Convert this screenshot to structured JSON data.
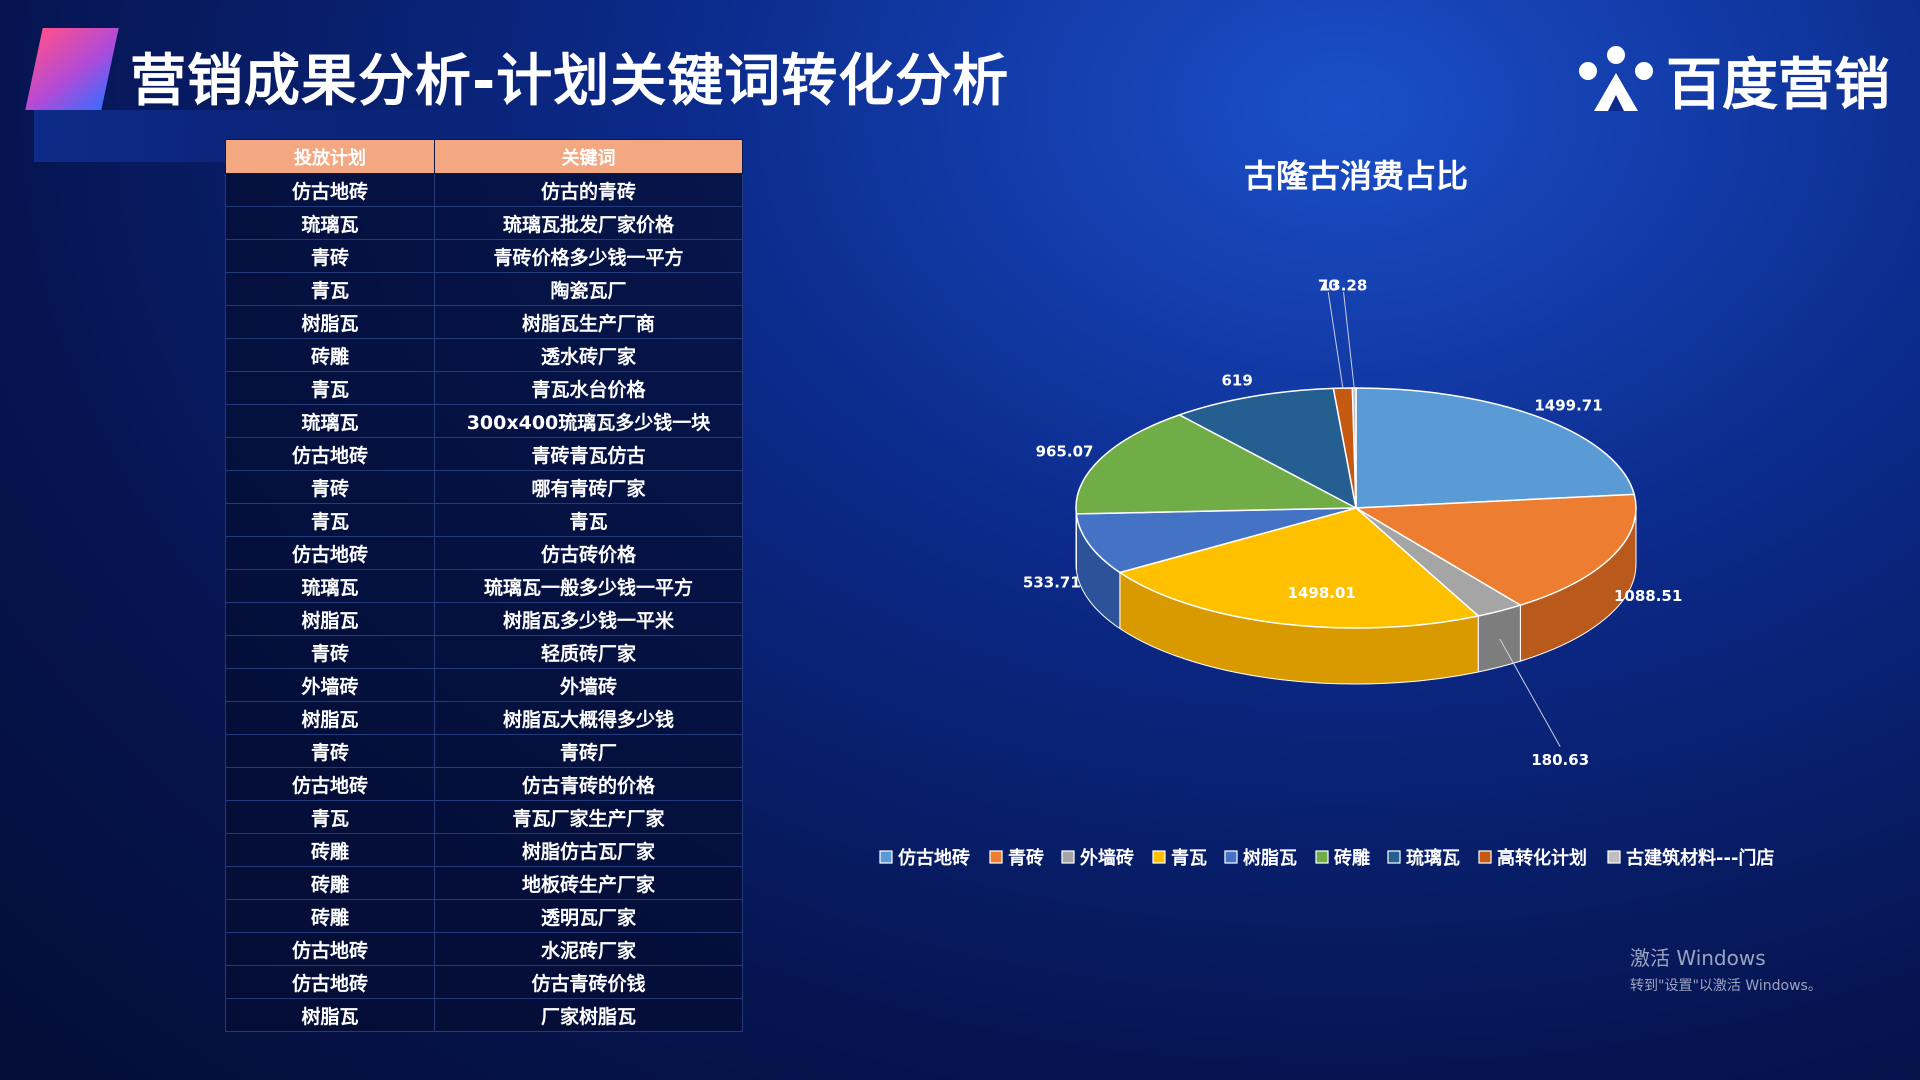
{
  "header": {
    "title": "营销成果分析-计划关键词转化分析",
    "brand": "百度营销"
  },
  "table": {
    "headers": [
      "投放计划",
      "关键词"
    ],
    "rows": [
      [
        "仿古地砖",
        "仿古的青砖"
      ],
      [
        "琉璃瓦",
        "琉璃瓦批发厂家价格"
      ],
      [
        "青砖",
        "青砖价格多少钱一平方"
      ],
      [
        "青瓦",
        "陶瓷瓦厂"
      ],
      [
        "树脂瓦",
        "树脂瓦生产厂商"
      ],
      [
        "砖雕",
        "透水砖厂家"
      ],
      [
        "青瓦",
        "青瓦水台价格"
      ],
      [
        "琉璃瓦",
        "300x400琉璃瓦多少钱一块"
      ],
      [
        "仿古地砖",
        "青砖青瓦仿古"
      ],
      [
        "青砖",
        "哪有青砖厂家"
      ],
      [
        "青瓦",
        "青瓦"
      ],
      [
        "仿古地砖",
        "仿古砖价格"
      ],
      [
        "琉璃瓦",
        "琉璃瓦一般多少钱一平方"
      ],
      [
        "树脂瓦",
        "树脂瓦多少钱一平米"
      ],
      [
        "青砖",
        "轻质砖厂家"
      ],
      [
        "外墙砖",
        "外墙砖"
      ],
      [
        "树脂瓦",
        "树脂瓦大概得多少钱"
      ],
      [
        "青砖",
        "青砖厂"
      ],
      [
        "仿古地砖",
        "仿古青砖的价格"
      ],
      [
        "青瓦",
        "青瓦厂家生产厂家"
      ],
      [
        "砖雕",
        "树脂仿古瓦厂家"
      ],
      [
        "砖雕",
        "地板砖生产厂家"
      ],
      [
        "砖雕",
        "透明瓦厂家"
      ],
      [
        "仿古地砖",
        "水泥砖厂家"
      ],
      [
        "仿古地砖",
        "仿古青砖价钱"
      ],
      [
        "树脂瓦",
        "厂家树脂瓦"
      ]
    ]
  },
  "chart_data": {
    "type": "pie",
    "title": "古隆古消费占比",
    "slices": [
      {
        "label": "仿古地砖",
        "value": 1499.71,
        "display": "1499.71",
        "color": "#5b9bd5",
        "side": "#3f78b0"
      },
      {
        "label": "青砖",
        "value": 1088.51,
        "display": "1088.51",
        "color": "#ed7d31",
        "side": "#b95a1c"
      },
      {
        "label": "外墙砖",
        "value": 180.63,
        "display": "180.63",
        "color": "#a5a5a5",
        "side": "#7d7d7d"
      },
      {
        "label": "青瓦",
        "value": 1498.01,
        "display": "1498.01",
        "color": "#ffc000",
        "side": "#d99a00"
      },
      {
        "label": "树脂瓦",
        "value": 533.71,
        "display": "533.71",
        "color": "#4472c4",
        "side": "#2c5299"
      },
      {
        "label": "砖雕",
        "value": 965.07,
        "display": "965.07",
        "color": "#70ad47",
        "side": "#4f8130"
      },
      {
        "label": "琉璃瓦",
        "value": 619,
        "display": "619",
        "color": "#255e91",
        "side": "#173f66"
      },
      {
        "label": "高转化计划",
        "value": 70,
        "display": "70",
        "color": "#c65911",
        "side": "#96420b"
      },
      {
        "label": "古建筑材料---门店",
        "value": 13.28,
        "display": "13.28",
        "color": "#bfbfbf",
        "side": "#8e8e8e"
      }
    ],
    "legend_position": "bottom"
  },
  "watermark": {
    "line1": "激活 Windows",
    "line2": "转到\"设置\"以激活 Windows。"
  }
}
